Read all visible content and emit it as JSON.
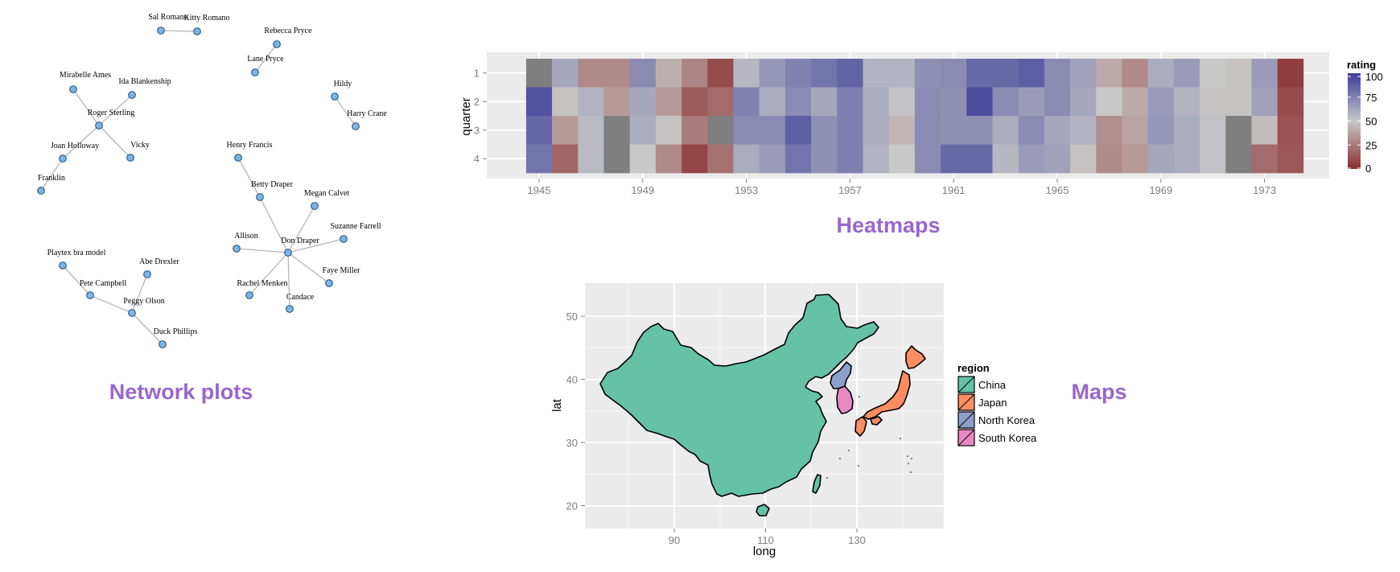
{
  "panels": {
    "network_title": "Network plots",
    "heatmap_title": "Heatmaps",
    "map_title": "Maps"
  },
  "colors": {
    "accent_title": "#9966cc",
    "node_fill": "#7eb4e2",
    "node_stroke": "#2d5f8b",
    "panel_bg": "#ebebeb",
    "heat_low": "#8b2d2d",
    "heat_mid": "#c8c8c8",
    "heat_high": "#3c3c99",
    "na_gray": "#7f7f7f"
  },
  "chart_data": [
    {
      "type": "network",
      "nodes": [
        "Sal Romano",
        "Kitty Romano",
        "Rebecca Pryce",
        "Lane Pryce",
        "Mirabelle Ames",
        "Ida Blankenship",
        "Roger Sterling",
        "Joan Holloway",
        "Vicky",
        "Franklin",
        "Hildy",
        "Harry Crane",
        "Henry Francis",
        "Betty Draper",
        "Megan Calvet",
        "Suzanne Farrell",
        "Allison",
        "Don Draper",
        "Faye Miller",
        "Rachel Menken",
        "Candace",
        "Playtex bra model",
        "Abe Drexler",
        "Pete Campbell",
        "Peggy Olson",
        "Duck Phillips"
      ],
      "edges": [
        [
          "Sal Romano",
          "Kitty Romano"
        ],
        [
          "Rebecca Pryce",
          "Lane Pryce"
        ],
        [
          "Mirabelle Ames",
          "Roger Sterling"
        ],
        [
          "Ida Blankenship",
          "Roger Sterling"
        ],
        [
          "Roger Sterling",
          "Joan Holloway"
        ],
        [
          "Roger Sterling",
          "Vicky"
        ],
        [
          "Joan Holloway",
          "Franklin"
        ],
        [
          "Hildy",
          "Harry Crane"
        ],
        [
          "Henry Francis",
          "Betty Draper"
        ],
        [
          "Betty Draper",
          "Don Draper"
        ],
        [
          "Megan Calvet",
          "Don Draper"
        ],
        [
          "Suzanne Farrell",
          "Don Draper"
        ],
        [
          "Allison",
          "Don Draper"
        ],
        [
          "Faye Miller",
          "Don Draper"
        ],
        [
          "Rachel Menken",
          "Don Draper"
        ],
        [
          "Candace",
          "Don Draper"
        ],
        [
          "Playtex bra model",
          "Pete Campbell"
        ],
        [
          "Pete Campbell",
          "Peggy Olson"
        ],
        [
          "Abe Drexler",
          "Peggy Olson"
        ],
        [
          "Peggy Olson",
          "Duck Phillips"
        ]
      ]
    },
    {
      "type": "heatmap",
      "xlabel": "",
      "ylabel": "quarter",
      "x_start": 1945,
      "x_end": 1974,
      "x_ticks": [
        "1945",
        "1949",
        "1953",
        "1957",
        "1961",
        "1965",
        "1969",
        "1973"
      ],
      "y_ticks": [
        "1",
        "2",
        "3",
        "4"
      ],
      "legend_title": "rating",
      "legend_ticks": [
        "100",
        "75",
        "50",
        "25",
        "0"
      ],
      "value_range": [
        0,
        100
      ],
      "values_by_quarter": [
        [
          null,
          62,
          30,
          30,
          72,
          42,
          28,
          10,
          56,
          68,
          75,
          80,
          86,
          58,
          58,
          70,
          72,
          84,
          84,
          88,
          72,
          64,
          40,
          30,
          60,
          66,
          50,
          48,
          66,
          5
        ],
        [
          92,
          48,
          58,
          35,
          62,
          35,
          15,
          20,
          75,
          60,
          72,
          62,
          76,
          60,
          52,
          72,
          70,
          94,
          72,
          66,
          72,
          62,
          50,
          40,
          66,
          58,
          48,
          48,
          64,
          10
        ],
        [
          85,
          35,
          55,
          null,
          60,
          48,
          25,
          null,
          72,
          72,
          88,
          70,
          76,
          60,
          44,
          72,
          70,
          70,
          60,
          72,
          62,
          58,
          32,
          38,
          68,
          60,
          52,
          null,
          46,
          12
        ],
        [
          80,
          18,
          55,
          null,
          50,
          30,
          8,
          22,
          60,
          66,
          80,
          70,
          76,
          58,
          50,
          72,
          84,
          84,
          56,
          66,
          64,
          48,
          30,
          35,
          62,
          60,
          52,
          null,
          20,
          14
        ]
      ]
    },
    {
      "type": "map",
      "xlabel": "long",
      "ylabel": "lat",
      "x_ticks": [
        "90",
        "110",
        "130"
      ],
      "y_ticks": [
        "50",
        "40",
        "30",
        "20"
      ],
      "legend_title": "region",
      "regions": [
        {
          "name": "China",
          "color": "#66c2a5"
        },
        {
          "name": "Japan",
          "color": "#fc8d62"
        },
        {
          "name": "North Korea",
          "color": "#8da0cb"
        },
        {
          "name": "South Korea",
          "color": "#e78ac3"
        }
      ]
    }
  ]
}
